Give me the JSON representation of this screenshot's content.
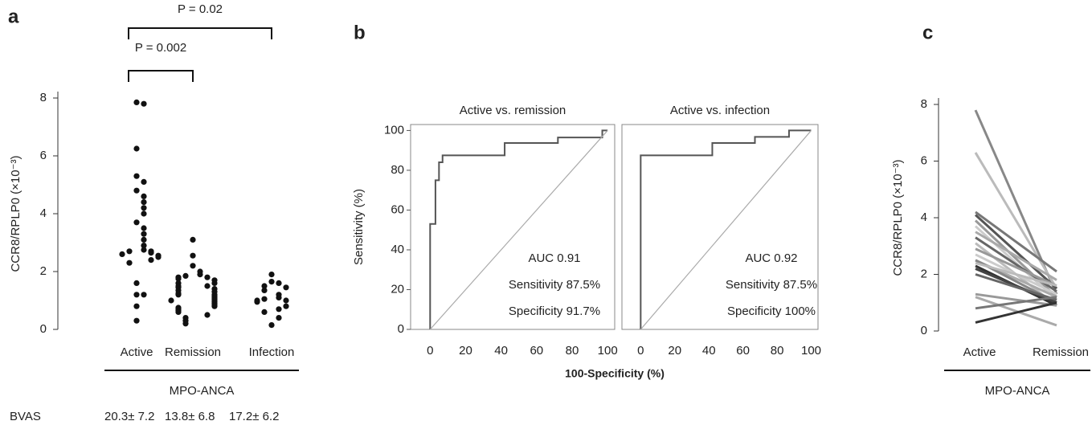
{
  "chart_data": [
    {
      "type": "strip",
      "panel_label": "a",
      "ylabel": "CCR8/RPLP0 (×10⁻³)",
      "categories": [
        "Active",
        "Remission",
        "Infection"
      ],
      "values": [
        [
          7.85,
          7.8,
          6.25,
          5.3,
          5.1,
          4.8,
          4.6,
          4.4,
          4.2,
          4.0,
          3.7,
          3.5,
          3.3,
          3.1,
          2.9,
          2.75,
          2.7,
          2.7,
          2.65,
          2.6,
          2.55,
          2.5,
          2.4,
          2.3,
          1.6,
          1.2,
          1.2,
          0.8,
          0.3
        ],
        [
          3.1,
          2.55,
          2.2,
          2.0,
          1.9,
          1.85,
          1.8,
          1.8,
          1.75,
          1.7,
          1.6,
          1.6,
          1.5,
          1.5,
          1.45,
          1.4,
          1.35,
          1.3,
          1.25,
          1.2,
          1.2,
          1.15,
          1.1,
          1.05,
          1.0,
          1.0,
          0.95,
          0.9,
          0.85,
          0.8,
          0.75,
          0.7,
          0.65,
          0.6,
          0.5,
          0.4,
          0.3,
          0.2
        ],
        [
          1.9,
          1.65,
          1.6,
          1.5,
          1.45,
          1.35,
          1.2,
          1.1,
          1.05,
          1.0,
          1.0,
          0.95,
          0.8,
          0.7,
          0.6,
          0.4,
          0.15
        ]
      ],
      "color": "#111111",
      "ylim": [
        0,
        8
      ],
      "yticks": [
        0,
        2,
        4,
        6,
        8
      ],
      "group_label": "MPO-ANCA",
      "comparisons": [
        {
          "text": "P = 0.002",
          "from": "Active",
          "to": "Remission"
        },
        {
          "text": "P = 0.02",
          "from": "Active",
          "to": "Infection"
        }
      ],
      "row_label": "BVAS",
      "row_values": [
        "20.3± 7.2",
        "13.8± 6.8",
        "17.2± 6.2"
      ]
    },
    {
      "type": "line",
      "panel_label": "b",
      "title": "Active vs. remission",
      "xlabel": "100-Specificity (%)",
      "ylabel": "Sensitivity (%)",
      "xlim": [
        -11,
        104
      ],
      "ylim": [
        0,
        103
      ],
      "xticks": [
        0,
        20,
        40,
        60,
        80,
        100
      ],
      "yticks": [
        0,
        20,
        40,
        60,
        80,
        100
      ],
      "series": [
        {
          "color": "#555555",
          "x": [
            0,
            0,
            3,
            3,
            5,
            5,
            7,
            7,
            42,
            42,
            72,
            72,
            97,
            97,
            100
          ],
          "values": [
            0,
            53,
            53,
            75,
            75,
            84,
            84,
            87.5,
            87.5,
            93.7,
            93.7,
            96.5,
            96.5,
            100,
            100
          ]
        },
        {
          "color": "#aaaaaa",
          "x": [
            0,
            100
          ],
          "values": [
            0,
            100
          ]
        }
      ],
      "annotations": [
        "AUC 0.91",
        "Sensitivity 87.5%",
        "Specificity 91.7%"
      ]
    },
    {
      "type": "line",
      "title": "Active vs. infection",
      "xlim": [
        -11,
        104
      ],
      "ylim": [
        0,
        103
      ],
      "xticks": [
        0,
        20,
        40,
        60,
        80,
        100
      ],
      "series": [
        {
          "color": "#555555",
          "x": [
            0,
            0,
            42,
            42,
            67,
            67,
            87,
            87,
            100
          ],
          "values": [
            0,
            87.5,
            87.5,
            93.7,
            93.7,
            96.8,
            96.8,
            100,
            100
          ]
        },
        {
          "color": "#aaaaaa",
          "x": [
            0,
            100
          ],
          "values": [
            0,
            100
          ]
        }
      ],
      "annotations": [
        "AUC 0.92",
        "Sensitivity 87.5%",
        "Specificity 100%"
      ]
    },
    {
      "type": "paired",
      "panel_label": "c",
      "ylabel": "CCR8/RPLP0 (×10⁻³)",
      "categories": [
        "Active",
        "Remission"
      ],
      "ylim": [
        0,
        8
      ],
      "yticks": [
        0,
        2,
        4,
        6,
        8
      ],
      "group_label": "MPO-ANCA",
      "series": [
        {
          "color": "#888888",
          "values": [
            7.8,
            1.3
          ]
        },
        {
          "color": "#bbbbbb",
          "values": [
            6.3,
            1.5
          ]
        },
        {
          "color": "#777777",
          "values": [
            4.2,
            2.1
          ]
        },
        {
          "color": "#555555",
          "values": [
            4.1,
            1.5
          ]
        },
        {
          "color": "#999999",
          "values": [
            3.9,
            1.2
          ]
        },
        {
          "color": "#cccccc",
          "values": [
            3.7,
            1.1
          ]
        },
        {
          "color": "#aaaaaa",
          "values": [
            3.5,
            1.8
          ]
        },
        {
          "color": "#666666",
          "values": [
            3.3,
            1.4
          ]
        },
        {
          "color": "#bbbbbb",
          "values": [
            3.1,
            0.9
          ]
        },
        {
          "color": "#999999",
          "values": [
            2.9,
            1.6
          ]
        },
        {
          "color": "#cccccc",
          "values": [
            2.7,
            1.3
          ]
        },
        {
          "color": "#aaaaaa",
          "values": [
            2.5,
            1.2
          ]
        },
        {
          "color": "#888888",
          "values": [
            2.5,
            1.0
          ]
        },
        {
          "color": "#bbbbbb",
          "values": [
            2.4,
            1.6
          ]
        },
        {
          "color": "#333333",
          "values": [
            2.3,
            0.9
          ]
        },
        {
          "color": "#444444",
          "values": [
            2.2,
            1.0
          ]
        },
        {
          "color": "#666666",
          "values": [
            2.0,
            1.1
          ]
        },
        {
          "color": "#999999",
          "values": [
            1.3,
            0.9
          ]
        },
        {
          "color": "#aaaaaa",
          "values": [
            1.2,
            0.2
          ]
        },
        {
          "color": "#777777",
          "values": [
            0.8,
            1.2
          ]
        },
        {
          "color": "#333333",
          "values": [
            0.3,
            1.0
          ]
        }
      ]
    }
  ]
}
